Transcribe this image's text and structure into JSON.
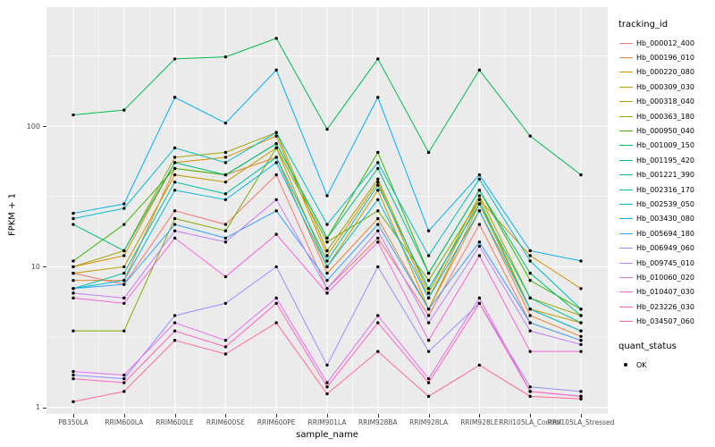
{
  "chart_data": {
    "type": "line",
    "scale_y": "log10",
    "grid": true,
    "legend_position": "right",
    "xlabel": "sample_name",
    "ylabel": "FPKM + 1",
    "ylim": [
      0.9,
      700
    ],
    "yticks": [
      1,
      10,
      100
    ],
    "categories": [
      "PB350LA",
      "RRIM600LA",
      "RRIM600LE",
      "RRIM600SE",
      "RRIM600PE",
      "RRIM901LA",
      "RRIM928BA",
      "RRIM928LA",
      "RRIM928LE",
      "RRII105LA_Control",
      "RRII105LA_Stressed"
    ],
    "point_color": "#000000",
    "series": [
      {
        "name": "Hb_000012_400",
        "color": "#F8766D",
        "values": [
          9,
          7.5,
          25,
          20,
          45,
          7,
          16,
          4.5,
          20,
          4,
          3
        ]
      },
      {
        "name": "Hb_000196_010",
        "color": "#EA8331",
        "values": [
          8,
          8,
          50,
          45,
          60,
          9,
          22,
          5,
          25,
          4.5,
          3.2
        ]
      },
      {
        "name": "Hb_000220_080",
        "color": "#D89000",
        "values": [
          10,
          12,
          55,
          60,
          85,
          12,
          40,
          6,
          30,
          12,
          7
        ]
      },
      {
        "name": "Hb_000309_030",
        "color": "#C09B00",
        "values": [
          9,
          10,
          45,
          40,
          70,
          10,
          35,
          5,
          28,
          5,
          4
        ]
      },
      {
        "name": "Hb_000318_040",
        "color": "#A3A500",
        "values": [
          10,
          13,
          60,
          65,
          90,
          13,
          42,
          6.5,
          32,
          6,
          4.5
        ]
      },
      {
        "name": "Hb_000363_180",
        "color": "#7CAE00",
        "values": [
          3.5,
          3.5,
          22,
          18,
          70,
          15,
          25,
          8,
          30,
          5,
          3.5
        ]
      },
      {
        "name": "Hb_000950_040",
        "color": "#39B600",
        "values": [
          11,
          20,
          50,
          45,
          75,
          16,
          65,
          9,
          35,
          8,
          5
        ]
      },
      {
        "name": "Hb_001009_150",
        "color": "#00BB4E",
        "values": [
          120,
          130,
          300,
          310,
          420,
          95,
          300,
          65,
          250,
          85,
          45
        ]
      },
      {
        "name": "Hb_001195_420",
        "color": "#00BF7D",
        "values": [
          20,
          13,
          55,
          45,
          75,
          16,
          50,
          9,
          35,
          9,
          4.5
        ]
      },
      {
        "name": "Hb_001221_390",
        "color": "#00C1A3",
        "values": [
          7,
          9,
          40,
          33,
          60,
          11,
          38,
          7,
          28,
          6,
          4
        ]
      },
      {
        "name": "Hb_002316_170",
        "color": "#00BFC4",
        "values": [
          22,
          26,
          70,
          55,
          90,
          20,
          55,
          12,
          42,
          11,
          5
        ]
      },
      {
        "name": "Hb_002539_050",
        "color": "#00BAE0",
        "values": [
          7,
          8,
          35,
          30,
          55,
          10,
          30,
          6,
          25,
          5,
          3.5
        ]
      },
      {
        "name": "Hb_003430_080",
        "color": "#00B0F6",
        "values": [
          24,
          28,
          160,
          105,
          250,
          32,
          160,
          18,
          45,
          13,
          11
        ]
      },
      {
        "name": "Hb_005694_180",
        "color": "#35A2FF",
        "values": [
          7,
          7.5,
          20,
          16,
          25,
          8,
          20,
          5,
          15,
          4,
          3
        ]
      },
      {
        "name": "Hb_006949_060",
        "color": "#9590FF",
        "values": [
          1.7,
          1.6,
          4.5,
          5.5,
          10,
          2,
          10,
          2.5,
          5.5,
          1.4,
          1.3
        ]
      },
      {
        "name": "Hb_009745_010",
        "color": "#C77CFF",
        "values": [
          6.5,
          6,
          18,
          15,
          30,
          7,
          18,
          4,
          14,
          3.5,
          2.8
        ]
      },
      {
        "name": "Hb_010060_020",
        "color": "#E76BF3",
        "values": [
          1.8,
          1.7,
          4,
          3,
          6,
          1.5,
          4.5,
          1.6,
          6,
          1.3,
          1.2
        ]
      },
      {
        "name": "Hb_010407_030",
        "color": "#FA62DB",
        "values": [
          6,
          5.5,
          16,
          8.5,
          17,
          6.5,
          15,
          3,
          12,
          2.5,
          2.5
        ]
      },
      {
        "name": "Hb_023226_030",
        "color": "#FF62BC",
        "values": [
          1.6,
          1.5,
          3.5,
          2.7,
          5.5,
          1.4,
          4,
          1.5,
          5.5,
          1.3,
          1.2
        ]
      },
      {
        "name": "Hb_034507_060",
        "color": "#FF6A98",
        "values": [
          1.1,
          1.3,
          3,
          2.4,
          4,
          1.25,
          2.5,
          1.2,
          2,
          1.2,
          1.15
        ]
      }
    ],
    "legend": {
      "title": "tracking_id",
      "quant_title": "quant_status",
      "quant_label": "OK"
    },
    "panel_bg": "#EBEBEB",
    "gridline_color": "#FFFFFF",
    "tick_text_color": "#4D4D4D"
  }
}
